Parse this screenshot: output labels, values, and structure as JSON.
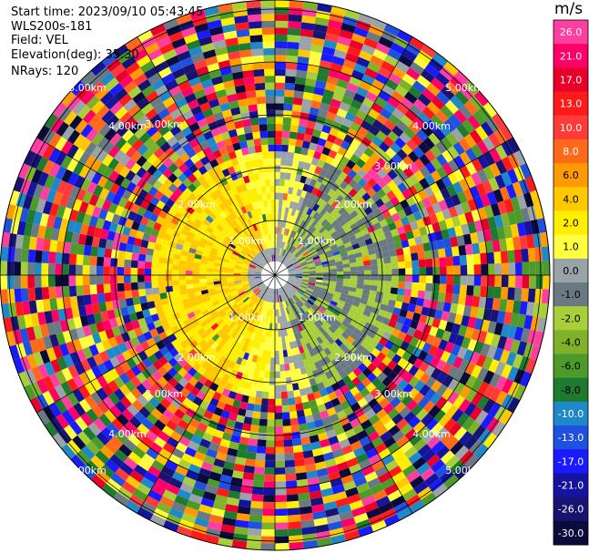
{
  "info": {
    "start_time": "Start time: 2023/09/10 05:43:45",
    "instrument": "WLS200s-181",
    "field": "Field: VEL",
    "elevation": "Elevation(deg): 35.30",
    "nrays": "NRays: 120"
  },
  "colorbar": {
    "unit": "m/s",
    "ticks": [
      "26.0",
      "21.0",
      "17.0",
      "13.0",
      "10.0",
      "8.0",
      "6.0",
      "4.0",
      "2.0",
      "1.0",
      "0.0",
      "-1.0",
      "-2.0",
      "-4.0",
      "-6.0",
      "-8.0",
      "-10.0",
      "-13.0",
      "-17.0",
      "-21.0",
      "-26.0",
      "-30.0"
    ],
    "colors": [
      "#ff3fa0",
      "#ff0066",
      "#e8002a",
      "#ff1a1a",
      "#ff3a3a",
      "#ff6a1a",
      "#ff9a00",
      "#ffc800",
      "#ffee00",
      "#ffff40",
      "#9aa4a8",
      "#6a7a82",
      "#a8cf3a",
      "#7fb22a",
      "#4c9a2a",
      "#1e7a2e",
      "#1e88c8",
      "#1f50e0",
      "#1a1aff",
      "#1414a0",
      "#161470",
      "#0a0a3c"
    ]
  },
  "chart_data": {
    "type": "ppi",
    "field": "VEL",
    "units": "m/s",
    "range_ring_labels": [
      "1.00km",
      "2.00km",
      "3.00km",
      "4.00km",
      "5.00km"
    ],
    "nrays": 120,
    "elevation_deg": 35.3,
    "value_range": [
      -30.0,
      26.0
    ],
    "near_field_pattern": [
      {
        "sector": "west",
        "value": 2.0
      },
      {
        "sector": "east",
        "value": -2.0
      },
      {
        "sector": "center",
        "value": 0.0
      }
    ]
  }
}
